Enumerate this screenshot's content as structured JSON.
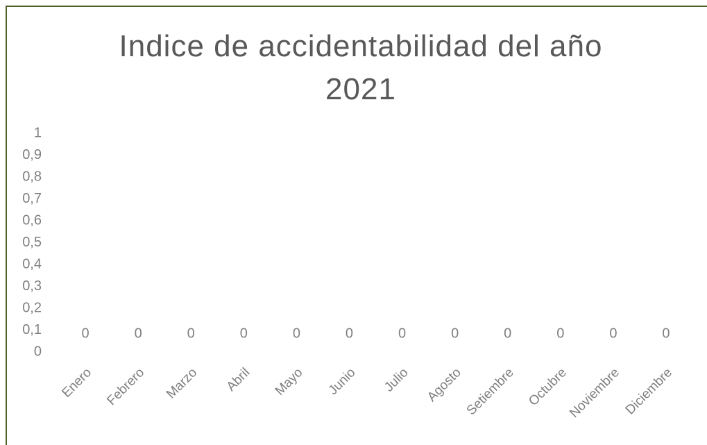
{
  "chart_data": {
    "type": "bar",
    "title": "Indice de accidentabilidad del año 2021",
    "categories": [
      "Enero",
      "Febrero",
      "Marzo",
      "Abril",
      "Mayo",
      "Junio",
      "Julio",
      "Agosto",
      "Setiembre",
      "Octubre",
      "Noviembre",
      "Diciembre"
    ],
    "values": [
      0,
      0,
      0,
      0,
      0,
      0,
      0,
      0,
      0,
      0,
      0,
      0
    ],
    "color": "#4472c4",
    "ylim": [
      0,
      1
    ],
    "yticks": [
      0,
      {
        "value": 0.1,
        "label": "0,1"
      },
      {
        "value": 0.2,
        "label": "0,2"
      },
      {
        "value": 0.3,
        "label": "0,3"
      },
      {
        "value": 0.4,
        "label": "0,4"
      },
      {
        "value": 0.5,
        "label": "0,5"
      },
      {
        "value": 0.6,
        "label": "0,6"
      },
      {
        "value": 0.7,
        "label": "0,7"
      },
      {
        "value": 0.8,
        "label": "0,8"
      },
      {
        "value": 0.9,
        "label": "0,9"
      },
      1
    ],
    "grid": false
  }
}
